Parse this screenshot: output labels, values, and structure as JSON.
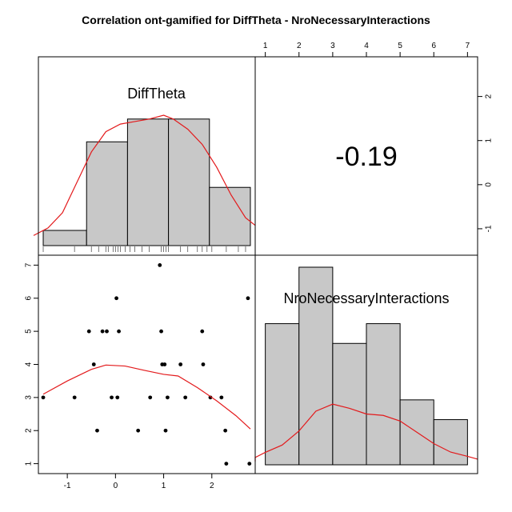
{
  "title": "Correlation ont-gamified for DiffTheta - NroNecessaryInteractions",
  "correlation_label": "-0.19",
  "colors": {
    "bar_fill": "#c8c8c8",
    "density": "#e31a1c",
    "points": "#000000"
  },
  "chart_data": {
    "type": "scatter-matrix",
    "variables": [
      "DiffTheta",
      "NroNecessaryInteractions"
    ],
    "diff_theta_axis": {
      "ticks": [
        "-1",
        "0",
        "1",
        "2"
      ],
      "range": [
        -1.6,
        2.9
      ]
    },
    "interactions_axis": {
      "ticks": [
        "1",
        "2",
        "3",
        "4",
        "5",
        "6",
        "7"
      ],
      "range": [
        0.7,
        7.3
      ]
    },
    "diff_theta_histogram": {
      "bin_edges": [
        -1.5,
        -0.6,
        0.25,
        1.1,
        1.95,
        2.8
      ],
      "heights": [
        0.12,
        0.82,
        1.0,
        1.0,
        0.46
      ]
    },
    "diff_theta_rug": [
      -1.5,
      -0.85,
      -0.5,
      -0.35,
      -0.2,
      -0.15,
      -0.05,
      0.0,
      0.05,
      0.1,
      0.2,
      0.3,
      0.4,
      0.55,
      0.7,
      0.95,
      1.0,
      1.05,
      1.1,
      1.35,
      1.5,
      1.7,
      1.8,
      1.9,
      2.0,
      2.3,
      2.55,
      2.7
    ],
    "diff_theta_density": [
      [
        -1.7,
        0.08
      ],
      [
        -1.4,
        0.14
      ],
      [
        -1.1,
        0.26
      ],
      [
        -0.8,
        0.5
      ],
      [
        -0.5,
        0.74
      ],
      [
        -0.2,
        0.9
      ],
      [
        0.1,
        0.96
      ],
      [
        0.4,
        0.98
      ],
      [
        0.7,
        1.0
      ],
      [
        1.0,
        1.03
      ],
      [
        1.2,
        1.0
      ],
      [
        1.5,
        0.92
      ],
      [
        1.8,
        0.8
      ],
      [
        2.1,
        0.62
      ],
      [
        2.4,
        0.4
      ],
      [
        2.7,
        0.22
      ],
      [
        2.9,
        0.16
      ]
    ],
    "scatter_points": [
      [
        -1.5,
        3
      ],
      [
        -0.85,
        3
      ],
      [
        -0.55,
        5
      ],
      [
        -0.45,
        4
      ],
      [
        -0.38,
        2
      ],
      [
        -0.27,
        5
      ],
      [
        -0.18,
        5
      ],
      [
        -0.08,
        3
      ],
      [
        0.02,
        6
      ],
      [
        0.04,
        3
      ],
      [
        0.07,
        5
      ],
      [
        0.47,
        2
      ],
      [
        0.72,
        3
      ],
      [
        0.92,
        7
      ],
      [
        0.95,
        5
      ],
      [
        0.97,
        4
      ],
      [
        1.02,
        4
      ],
      [
        1.04,
        2
      ],
      [
        1.08,
        3
      ],
      [
        1.35,
        4
      ],
      [
        1.45,
        3
      ],
      [
        1.8,
        5
      ],
      [
        1.82,
        4
      ],
      [
        1.97,
        3
      ],
      [
        2.2,
        3
      ],
      [
        2.28,
        2
      ],
      [
        2.3,
        1
      ],
      [
        2.75,
        6
      ],
      [
        2.78,
        1
      ]
    ],
    "scatter_smooth": [
      [
        -1.5,
        3.1
      ],
      [
        -1.0,
        3.5
      ],
      [
        -0.5,
        3.85
      ],
      [
        -0.2,
        3.98
      ],
      [
        0.2,
        3.95
      ],
      [
        0.6,
        3.82
      ],
      [
        1.0,
        3.7
      ],
      [
        1.3,
        3.65
      ],
      [
        1.7,
        3.3
      ],
      [
        2.1,
        2.9
      ],
      [
        2.5,
        2.45
      ],
      [
        2.8,
        2.05
      ]
    ],
    "interactions_histogram": {
      "bin_edges": [
        1,
        2,
        3,
        4,
        5,
        6,
        7
      ],
      "heights": [
        5,
        7,
        4.3,
        5,
        2.3,
        1.6
      ],
      "max": 7
    },
    "interactions_density": [
      [
        0.0,
        0.12
      ],
      [
        0.5,
        0.26
      ],
      [
        1.0,
        0.44
      ],
      [
        1.5,
        0.7
      ],
      [
        2.0,
        1.2
      ],
      [
        2.5,
        1.9
      ],
      [
        3.0,
        2.15
      ],
      [
        3.5,
        2.0
      ],
      [
        4.0,
        1.8
      ],
      [
        4.5,
        1.75
      ],
      [
        5.0,
        1.55
      ],
      [
        5.5,
        1.15
      ],
      [
        6.0,
        0.75
      ],
      [
        6.5,
        0.45
      ],
      [
        7.0,
        0.3
      ],
      [
        7.4,
        0.2
      ]
    ]
  }
}
